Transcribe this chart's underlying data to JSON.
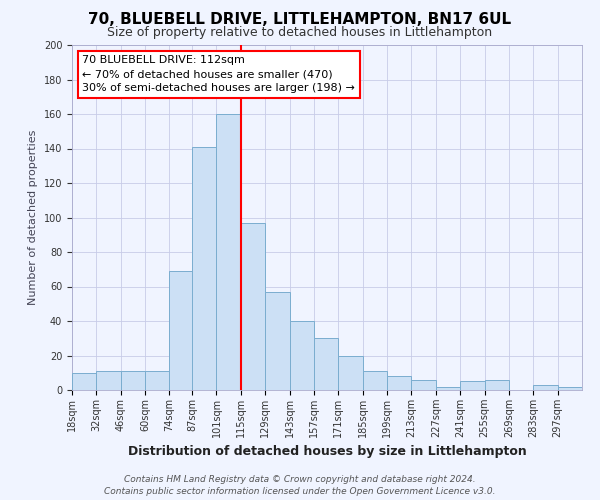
{
  "title": "70, BLUEBELL DRIVE, LITTLEHAMPTON, BN17 6UL",
  "subtitle": "Size of property relative to detached houses in Littlehampton",
  "xlabel": "Distribution of detached houses by size in Littlehampton",
  "ylabel": "Number of detached properties",
  "bin_labels": [
    "18sqm",
    "32sqm",
    "46sqm",
    "60sqm",
    "74sqm",
    "87sqm",
    "101sqm",
    "115sqm",
    "129sqm",
    "143sqm",
    "157sqm",
    "171sqm",
    "185sqm",
    "199sqm",
    "213sqm",
    "227sqm",
    "241sqm",
    "255sqm",
    "269sqm",
    "283sqm",
    "297sqm"
  ],
  "bin_edges": [
    18,
    32,
    46,
    60,
    74,
    87,
    101,
    115,
    129,
    143,
    157,
    171,
    185,
    199,
    213,
    227,
    241,
    255,
    269,
    283,
    297
  ],
  "bar_heights": [
    10,
    11,
    11,
    11,
    69,
    141,
    160,
    97,
    57,
    40,
    30,
    20,
    11,
    8,
    6,
    2,
    5,
    6,
    0,
    3,
    2
  ],
  "bar_color": "#cce0f5",
  "bar_edge_color": "#7aadcf",
  "vline_x": 115,
  "vline_color": "red",
  "annotation_line1": "70 BLUEBELL DRIVE: 112sqm",
  "annotation_line2": "← 70% of detached houses are smaller (470)",
  "annotation_line3": "30% of semi-detached houses are larger (198) →",
  "annotation_box_color": "red",
  "annotation_box_bg": "white",
  "ylim": [
    0,
    200
  ],
  "yticks": [
    0,
    20,
    40,
    60,
    80,
    100,
    120,
    140,
    160,
    180,
    200
  ],
  "footer_line1": "Contains HM Land Registry data © Crown copyright and database right 2024.",
  "footer_line2": "Contains public sector information licensed under the Open Government Licence v3.0.",
  "bg_color": "#f0f4ff",
  "grid_color": "#c8cce8",
  "title_fontsize": 11,
  "subtitle_fontsize": 9,
  "xlabel_fontsize": 9,
  "ylabel_fontsize": 8,
  "tick_fontsize": 7,
  "footer_fontsize": 6.5,
  "annotation_fontsize": 8
}
